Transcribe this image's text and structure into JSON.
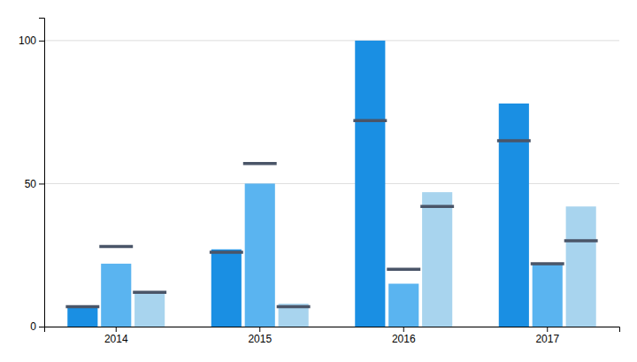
{
  "chart_data": {
    "type": "bar",
    "categories": [
      "2014",
      "2015",
      "2016",
      "2017"
    ],
    "series": [
      {
        "type": "bar",
        "color": "#1a8fe3",
        "values": [
          7,
          27,
          100,
          78
        ]
      },
      {
        "type": "bar",
        "color": "#5ab4f0",
        "values": [
          22,
          50,
          15,
          22
        ]
      },
      {
        "type": "bar",
        "color": "#a8d4ee",
        "values": [
          12,
          8,
          47,
          42
        ]
      },
      {
        "type": "target",
        "color": "#4a5568",
        "values": [
          7,
          26,
          72,
          65
        ]
      },
      {
        "type": "target",
        "color": "#4a5568",
        "values": [
          28,
          57,
          20,
          22
        ]
      },
      {
        "type": "target",
        "color": "#4a5568",
        "values": [
          12,
          7,
          42,
          30
        ]
      }
    ],
    "ylim": [
      0,
      108
    ],
    "yticks": [
      0,
      50,
      100
    ],
    "grid": true
  }
}
